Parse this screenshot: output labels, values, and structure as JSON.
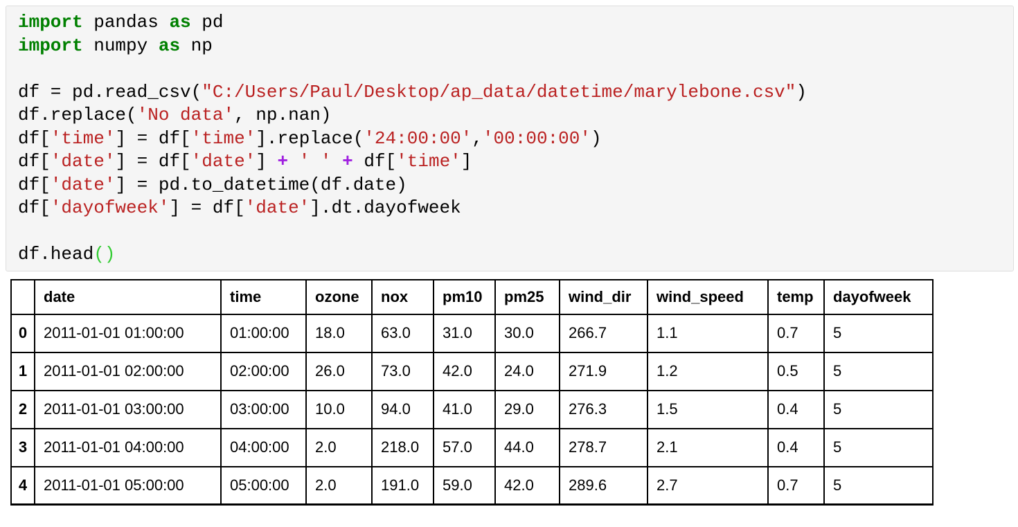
{
  "colors": {
    "keyword": "#008000",
    "string": "#ba2121",
    "operator": "#a020e0",
    "bracket_match": "#33cc33",
    "cell_background": "#f5f5f5",
    "table_border": "#000000"
  },
  "code_cell": {
    "lines": [
      [
        {
          "type": "keyword",
          "text": "import"
        },
        {
          "type": "plain",
          "text": " pandas "
        },
        {
          "type": "keyword",
          "text": "as"
        },
        {
          "type": "plain",
          "text": " pd"
        }
      ],
      [
        {
          "type": "keyword",
          "text": "import"
        },
        {
          "type": "plain",
          "text": " numpy "
        },
        {
          "type": "keyword",
          "text": "as"
        },
        {
          "type": "plain",
          "text": " np"
        }
      ],
      [],
      [
        {
          "type": "plain",
          "text": "df = pd.read_csv("
        },
        {
          "type": "string",
          "text": "\"C:/Users/Paul/Desktop/ap_data/datetime/marylebone.csv\""
        },
        {
          "type": "plain",
          "text": ")"
        }
      ],
      [
        {
          "type": "plain",
          "text": "df.replace("
        },
        {
          "type": "string",
          "text": "'No data'"
        },
        {
          "type": "plain",
          "text": ", np.nan)"
        }
      ],
      [
        {
          "type": "plain",
          "text": "df["
        },
        {
          "type": "string",
          "text": "'time'"
        },
        {
          "type": "plain",
          "text": "] = df["
        },
        {
          "type": "string",
          "text": "'time'"
        },
        {
          "type": "plain",
          "text": "].replace("
        },
        {
          "type": "string",
          "text": "'24:00:00'"
        },
        {
          "type": "plain",
          "text": ","
        },
        {
          "type": "string",
          "text": "'00:00:00'"
        },
        {
          "type": "plain",
          "text": ")"
        }
      ],
      [
        {
          "type": "plain",
          "text": "df["
        },
        {
          "type": "string",
          "text": "'date'"
        },
        {
          "type": "plain",
          "text": "] = df["
        },
        {
          "type": "string",
          "text": "'date'"
        },
        {
          "type": "plain",
          "text": "] "
        },
        {
          "type": "operator",
          "text": "+"
        },
        {
          "type": "plain",
          "text": " "
        },
        {
          "type": "string",
          "text": "' '"
        },
        {
          "type": "plain",
          "text": " "
        },
        {
          "type": "operator",
          "text": "+"
        },
        {
          "type": "plain",
          "text": " df["
        },
        {
          "type": "string",
          "text": "'time'"
        },
        {
          "type": "plain",
          "text": "]"
        }
      ],
      [
        {
          "type": "plain",
          "text": "df["
        },
        {
          "type": "string",
          "text": "'date'"
        },
        {
          "type": "plain",
          "text": "] = pd.to_datetime(df.date)"
        }
      ],
      [
        {
          "type": "plain",
          "text": "df["
        },
        {
          "type": "string",
          "text": "'dayofweek'"
        },
        {
          "type": "plain",
          "text": "] = df["
        },
        {
          "type": "string",
          "text": "'date'"
        },
        {
          "type": "plain",
          "text": "].dt.dayofweek"
        }
      ],
      [],
      [
        {
          "type": "plain",
          "text": "df.head"
        },
        {
          "type": "bracket",
          "text": "()"
        }
      ]
    ]
  },
  "table": {
    "corner_label": "",
    "columns": [
      "date",
      "time",
      "ozone",
      "nox",
      "pm10",
      "pm25",
      "wind_dir",
      "wind_speed",
      "temp",
      "dayofweek"
    ],
    "rows": [
      {
        "index": "0",
        "cells": [
          "2011-01-01 01:00:00",
          "01:00:00",
          "18.0",
          "63.0",
          "31.0",
          "30.0",
          "266.7",
          "1.1",
          "0.7",
          "5"
        ]
      },
      {
        "index": "1",
        "cells": [
          "2011-01-01 02:00:00",
          "02:00:00",
          "26.0",
          "73.0",
          "42.0",
          "24.0",
          "271.9",
          "1.2",
          "0.5",
          "5"
        ]
      },
      {
        "index": "2",
        "cells": [
          "2011-01-01 03:00:00",
          "03:00:00",
          "10.0",
          "94.0",
          "41.0",
          "29.0",
          "276.3",
          "1.5",
          "0.4",
          "5"
        ]
      },
      {
        "index": "3",
        "cells": [
          "2011-01-01 04:00:00",
          "04:00:00",
          "2.0",
          "218.0",
          "57.0",
          "44.0",
          "278.7",
          "2.1",
          "0.4",
          "5"
        ]
      },
      {
        "index": "4",
        "cells": [
          "2011-01-01 05:00:00",
          "05:00:00",
          "2.0",
          "191.0",
          "59.0",
          "42.0",
          "289.6",
          "2.7",
          "0.7",
          "5"
        ]
      }
    ]
  }
}
